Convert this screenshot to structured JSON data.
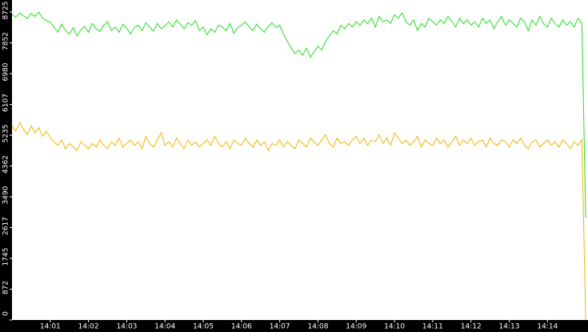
{
  "chart_data": {
    "type": "line",
    "x": [
      0,
      0.1,
      0.2,
      0.3,
      0.4,
      0.5,
      0.6,
      0.7,
      0.8,
      0.9,
      1,
      1.1,
      1.2,
      1.3,
      1.4,
      1.5,
      1.6,
      1.7,
      1.8,
      1.9,
      2,
      2.1,
      2.2,
      2.3,
      2.4,
      2.5,
      2.6,
      2.7,
      2.8,
      2.9,
      3,
      3.1,
      3.2,
      3.3,
      3.4,
      3.5,
      3.6,
      3.7,
      3.8,
      3.9,
      4,
      4.1,
      4.2,
      4.3,
      4.4,
      4.5,
      4.6,
      4.7,
      4.8,
      4.9,
      5,
      5.1,
      5.2,
      5.3,
      5.4,
      5.5,
      5.6,
      5.7,
      5.8,
      5.9,
      6,
      6.1,
      6.2,
      6.3,
      6.4,
      6.5,
      6.6,
      6.7,
      6.8,
      6.9,
      7,
      7.1,
      7.2,
      7.3,
      7.4,
      7.5,
      7.6,
      7.7,
      7.8,
      7.9,
      8,
      8.1,
      8.2,
      8.3,
      8.4,
      8.5,
      8.6,
      8.7,
      8.8,
      8.9,
      9,
      9.1,
      9.2,
      9.3,
      9.4,
      9.5,
      9.6,
      9.7,
      9.8,
      9.9,
      10,
      10.1,
      10.2,
      10.3,
      10.4,
      10.5,
      10.6,
      10.7,
      10.8,
      10.9,
      11,
      11.1,
      11.2,
      11.3,
      11.4,
      11.5,
      11.6,
      11.7,
      11.8,
      11.9,
      12,
      12.1,
      12.2,
      12.3,
      12.4,
      12.5,
      12.6,
      12.7,
      12.8,
      12.9,
      13,
      13.1,
      13.2,
      13.3,
      13.4,
      13.5,
      13.6,
      13.7,
      13.8,
      13.9,
      14,
      14.1,
      14.2,
      14.3,
      14.4,
      14.5,
      14.6,
      14.7,
      14.8,
      14.9,
      15
    ],
    "series": [
      {
        "color": "#22dd22",
        "values": [
          8650,
          8580,
          8700,
          8620,
          8540,
          8680,
          8600,
          8720,
          8550,
          8480,
          8430,
          8300,
          8150,
          8380,
          8200,
          8100,
          8280,
          8050,
          8220,
          8320,
          8150,
          8400,
          8250,
          8180,
          8350,
          8450,
          8200,
          8300,
          8150,
          8380,
          8260,
          8100,
          8280,
          8350,
          8200,
          8420,
          8300,
          8180,
          8400,
          8250,
          8330,
          8450,
          8300,
          8500,
          8380,
          8250,
          8420,
          8350,
          8480,
          8200,
          8300,
          8080,
          8250,
          8150,
          8350,
          8300,
          8200,
          8400,
          8120,
          8280,
          8350,
          8450,
          8300,
          8200,
          8380,
          8250,
          8150,
          8320,
          8420,
          8280,
          8350,
          8100,
          7900,
          7700,
          7550,
          7650,
          7500,
          7700,
          7450,
          7600,
          7750,
          7650,
          7900,
          8050,
          8200,
          8100,
          8350,
          8250,
          8400,
          8300,
          8450,
          8350,
          8500,
          8400,
          8550,
          8300,
          8600,
          8450,
          8500,
          8400,
          8650,
          8550,
          8700,
          8450,
          8350,
          8500,
          8200,
          8400,
          8300,
          8550,
          8450,
          8350,
          8500,
          8400,
          8600,
          8450,
          8300,
          8550,
          8400,
          8500,
          8350,
          8450,
          8300,
          8550,
          8400,
          8500,
          8250,
          8450,
          8600,
          8350,
          8500,
          8400,
          8300,
          8550,
          8450,
          8200,
          8500,
          8350,
          8600,
          8400,
          8300,
          8550,
          8400,
          8300,
          8500,
          8350,
          8450,
          8300,
          8550,
          8400,
          2900
        ]
      },
      {
        "color": "#f0b400",
        "values": [
          5500,
          5350,
          5600,
          5400,
          5250,
          5500,
          5300,
          5450,
          5200,
          5350,
          5150,
          5050,
          4950,
          5100,
          4850,
          5000,
          4900,
          4800,
          5050,
          4950,
          4850,
          5000,
          4900,
          5100,
          4950,
          4850,
          5050,
          4950,
          5150,
          4900,
          5000,
          5100,
          4950,
          5050,
          4850,
          5200,
          5000,
          4900,
          5100,
          5300,
          4950,
          5050,
          4900,
          5150,
          5000,
          4850,
          5100,
          4950,
          5050,
          4900,
          5000,
          5100,
          4950,
          5200,
          5000,
          4900,
          5050,
          4850,
          5100,
          5000,
          4950,
          5150,
          5000,
          4900,
          5100,
          4950,
          5050,
          4800,
          5000,
          4950,
          5100,
          4900,
          5050,
          4950,
          4850,
          5100,
          5000,
          4900,
          5150,
          5050,
          4950,
          5100,
          5250,
          5000,
          4900,
          5150,
          5000,
          5050,
          4950,
          5100,
          5200,
          5000,
          5150,
          4950,
          5100,
          5050,
          5250,
          5000,
          5150,
          4950,
          5300,
          5150,
          5000,
          5100,
          4950,
          5050,
          5200,
          4900,
          5100,
          5000,
          4950,
          5150,
          5000,
          5100,
          4900,
          5050,
          5200,
          4950,
          5100,
          5000,
          5150,
          4950,
          5050,
          5100,
          4900,
          5150,
          5000,
          4950,
          5100,
          5050,
          4900,
          5100,
          5000,
          5150,
          4950,
          4850,
          5050,
          5100,
          4900,
          5000,
          5100,
          4950,
          5050,
          4900,
          5100,
          5000,
          4850,
          5050,
          4950,
          5100,
          0
        ]
      }
    ],
    "xlim": [
      0,
      15.06
    ],
    "xticks": [
      {
        "value": 1,
        "label": "14:01"
      },
      {
        "value": 2,
        "label": "14:02"
      },
      {
        "value": 3,
        "label": "14:03"
      },
      {
        "value": 4,
        "label": "14:04"
      },
      {
        "value": 5,
        "label": "14:05"
      },
      {
        "value": 6,
        "label": "14:06"
      },
      {
        "value": 7,
        "label": "14:07"
      },
      {
        "value": 8,
        "label": "14:08"
      },
      {
        "value": 9,
        "label": "14:09"
      },
      {
        "value": 10,
        "label": "14:10"
      },
      {
        "value": 11,
        "label": "14:11"
      },
      {
        "value": 12,
        "label": "14:12"
      },
      {
        "value": 13,
        "label": "14:13"
      },
      {
        "value": 14,
        "label": "14:14"
      }
    ],
    "ylim": [
      0,
      9065
    ],
    "yticks": [
      0,
      872,
      1745,
      2617,
      3490,
      4362,
      5235,
      6107,
      6980,
      7852,
      8725
    ]
  }
}
